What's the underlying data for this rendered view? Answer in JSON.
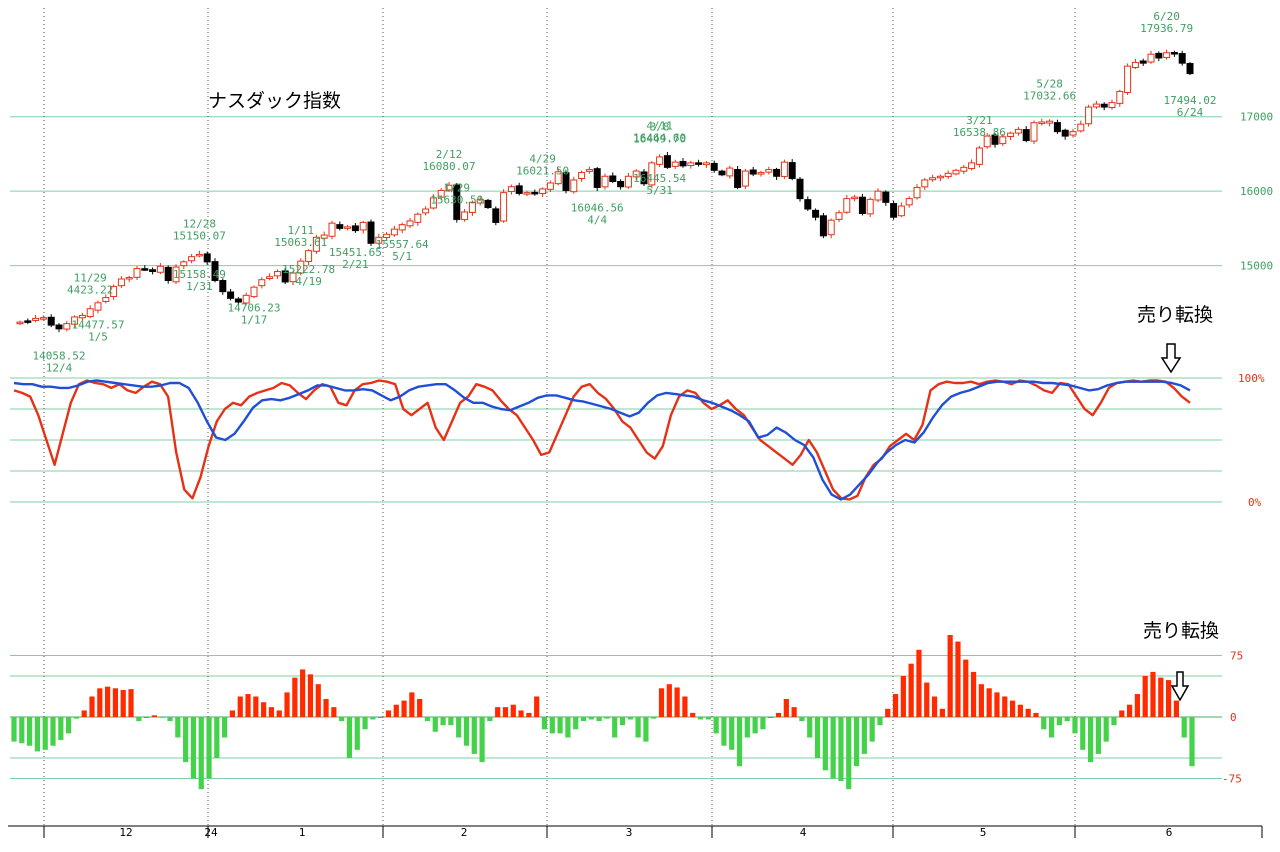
{
  "chart_data": [
    {
      "type": "candlestick",
      "title": "ナスダック指数",
      "ylim": [
        14000,
        18300
      ],
      "y_ticks": [
        15000,
        16000,
        17000
      ],
      "y_tick_labels": [
        "15000",
        "16000",
        "17000"
      ],
      "x_months": [
        "12",
        "24",
        "1",
        "2",
        "3",
        "4",
        "5",
        "6"
      ],
      "colors": {
        "up": "#e53217",
        "down": "#000000",
        "label": "#3f9f62",
        "grid": "#7fcfa6"
      },
      "closes": [
        14240,
        14250,
        14290,
        14300,
        14200,
        14150,
        14220,
        14310,
        14330,
        14420,
        14500,
        14570,
        14720,
        14820,
        14840,
        14960,
        14950,
        14920,
        14990,
        14800,
        14980,
        15050,
        15120,
        15150,
        15050,
        14800,
        14650,
        14560,
        14510,
        14600,
        14710,
        14810,
        14850,
        14920,
        14780,
        14900,
        15060,
        15200,
        15380,
        15410,
        15570,
        15500,
        15520,
        15470,
        15580,
        15300,
        15380,
        15420,
        15490,
        15550,
        15600,
        15690,
        15760,
        15910,
        16010,
        16080,
        15620,
        15720,
        15850,
        15890,
        15780,
        15580,
        15980,
        16060,
        15970,
        15980,
        15970,
        16030,
        16110,
        16260,
        16010,
        16150,
        16250,
        16290,
        16050,
        16200,
        16130,
        16060,
        16200,
        16270,
        16100,
        16380,
        16460,
        16320,
        16390,
        16340,
        16380,
        16360,
        16380,
        16280,
        16220,
        16310,
        16050,
        16270,
        16230,
        16250,
        16290,
        16200,
        16390,
        16170,
        15900,
        15760,
        15650,
        15400,
        15610,
        15710,
        15900,
        15920,
        15700,
        15890,
        16000,
        15850,
        15650,
        15800,
        15900,
        16050,
        16150,
        16180,
        16200,
        16240,
        16280,
        16320,
        16380,
        16580,
        16740,
        16630,
        16730,
        16780,
        16830,
        16680,
        16920,
        16930,
        16940,
        16800,
        16740,
        16800,
        16900,
        17130,
        17170,
        17130,
        17190,
        17340,
        17680,
        17730,
        17720,
        17840,
        17790,
        17860,
        17850,
        17720,
        17580
      ],
      "labels": [
        {
          "date": "11/29",
          "value": "4423.22",
          "pos": "above"
        },
        {
          "date": "12/4",
          "value": "14058.52",
          "pos": "below"
        },
        {
          "date": "12/28",
          "value": "15150.07",
          "pos": "above"
        },
        {
          "date": "1/5",
          "value": "14477.57",
          "pos": "below"
        },
        {
          "date": "1/11",
          "value": "15063.61",
          "pos": "above"
        },
        {
          "date": "1/17",
          "value": "14706.23",
          "pos": "below"
        },
        {
          "date": "1/29",
          "value": "15630.59",
          "pos": "above"
        },
        {
          "date": "1/31",
          "value": "15158.49",
          "pos": "below"
        },
        {
          "date": "2/12",
          "value": "16080.07",
          "pos": "above"
        },
        {
          "date": "2/21",
          "value": "15451.65",
          "pos": "below"
        },
        {
          "date": "3/8",
          "value": "16449.70",
          "pos": "above"
        },
        {
          "date": "3/21",
          "value": "16538.86",
          "pos": "above"
        },
        {
          "date": "4/4",
          "value": "16046.56",
          "pos": "below"
        },
        {
          "date": "4/11",
          "value": "16464.60",
          "pos": "above"
        },
        {
          "date": "4/19",
          "value": "15222.78",
          "pos": "below"
        },
        {
          "date": "4/29",
          "value": "16021.50",
          "pos": "above"
        },
        {
          "date": "5/1",
          "value": "15557.64",
          "pos": "below"
        },
        {
          "date": "5/28",
          "value": "17032.66",
          "pos": "above"
        },
        {
          "date": "5/31",
          "value": "16445.54",
          "pos": "below"
        },
        {
          "date": "6/20",
          "value": "17936.79",
          "pos": "above"
        },
        {
          "date": "6/24",
          "value": "17494.02",
          "pos": "below"
        }
      ]
    },
    {
      "type": "line",
      "ylim": [
        0,
        100
      ],
      "y_tick_labels": [
        "100%",
        "0%"
      ],
      "series": [
        {
          "color": "#e53217",
          "values": [
            90,
            88,
            85,
            70,
            50,
            30,
            55,
            80,
            95,
            98,
            96,
            95,
            92,
            95,
            90,
            88,
            93,
            97,
            95,
            85,
            40,
            10,
            3,
            20,
            45,
            65,
            75,
            80,
            78,
            85,
            88,
            90,
            92,
            96,
            94,
            88,
            83,
            90,
            95,
            93,
            80,
            78,
            90,
            95,
            96,
            98,
            97,
            95,
            75,
            70,
            75,
            80,
            60,
            50,
            65,
            80,
            85,
            95,
            93,
            90,
            82,
            75,
            70,
            60,
            50,
            38,
            40,
            55,
            70,
            85,
            93,
            95,
            88,
            83,
            75,
            65,
            60,
            50,
            40,
            35,
            45,
            70,
            85,
            90,
            88,
            80,
            75,
            78,
            82,
            75,
            70,
            60,
            50,
            45,
            40,
            35,
            30,
            38,
            50,
            40,
            25,
            10,
            3,
            2,
            5,
            20,
            30,
            35,
            45,
            50,
            55,
            50,
            62,
            90,
            95,
            97,
            96,
            96,
            97,
            95,
            97,
            98,
            97,
            95,
            98,
            97,
            94,
            90,
            88,
            96,
            95,
            85,
            75,
            70,
            80,
            92,
            96,
            97,
            98,
            97,
            98,
            98,
            97,
            92,
            85,
            80
          ]
        },
        {
          "color": "#1f4fd6",
          "values": [
            96,
            95,
            95,
            93,
            93,
            92,
            92,
            94,
            97,
            98,
            97,
            96,
            95,
            94,
            93,
            93,
            94,
            96,
            96,
            92,
            80,
            65,
            52,
            50,
            55,
            65,
            76,
            82,
            83,
            82,
            84,
            87,
            90,
            94,
            94,
            92,
            90,
            90,
            91,
            90,
            86,
            82,
            85,
            90,
            93,
            94,
            95,
            95,
            90,
            84,
            80,
            80,
            77,
            75,
            74,
            77,
            80,
            84,
            86,
            86,
            84,
            82,
            81,
            79,
            77,
            75,
            72,
            69,
            72,
            80,
            86,
            88,
            87,
            86,
            85,
            82,
            80,
            77,
            74,
            70,
            65,
            52,
            54,
            60,
            56,
            50,
            46,
            36,
            18,
            6,
            2,
            6,
            14,
            22,
            32,
            40,
            46,
            50,
            48,
            56,
            68,
            78,
            85,
            88,
            90,
            93,
            96,
            97,
            97,
            97,
            97,
            97,
            96,
            96,
            95,
            94,
            92,
            90,
            91,
            94,
            96,
            97,
            97,
            97,
            97,
            97,
            96,
            94,
            90
          ]
        }
      ]
    },
    {
      "type": "bar",
      "ylim": [
        -100,
        100
      ],
      "y_ticks": [
        75,
        0,
        -75
      ],
      "y_tick_labels": [
        "75",
        "0",
        "-75"
      ],
      "colors": {
        "positive": "#ff2a00",
        "negative": "#44d24a"
      },
      "values": [
        -30,
        -32,
        -35,
        -42,
        -40,
        -35,
        -28,
        -20,
        -2,
        8,
        25,
        35,
        37,
        35,
        33,
        34,
        -5,
        0,
        2,
        -1,
        -5,
        -25,
        -55,
        -75,
        -88,
        -75,
        -50,
        -25,
        8,
        25,
        28,
        25,
        18,
        12,
        8,
        30,
        48,
        58,
        52,
        40,
        22,
        12,
        -5,
        -50,
        -40,
        -15,
        -3,
        0,
        8,
        15,
        20,
        30,
        22,
        -5,
        -18,
        -10,
        -10,
        -25,
        -35,
        -45,
        -55,
        -5,
        12,
        12,
        15,
        8,
        5,
        25,
        -15,
        -20,
        -20,
        -25,
        -15,
        -5,
        -3,
        -5,
        -2,
        -25,
        -10,
        -3,
        -25,
        -30,
        -2,
        35,
        40,
        36,
        25,
        5,
        -3,
        -3,
        -20,
        -35,
        -40,
        -60,
        -25,
        -20,
        -15,
        0,
        5,
        22,
        12,
        -5,
        -25,
        -50,
        -65,
        -75,
        -78,
        -88,
        -60,
        -45,
        -30,
        -10,
        10,
        28,
        50,
        65,
        82,
        42,
        25,
        10,
        100,
        92,
        70,
        55,
        40,
        35,
        30,
        25,
        20,
        15,
        10,
        5,
        -15,
        -25,
        -10,
        -5,
        -20,
        -40,
        -55,
        -45,
        -30,
        -10,
        8,
        15,
        28,
        50,
        55,
        48,
        45,
        20,
        -25,
        -60
      ]
    }
  ],
  "annotations": {
    "arrow_label_1": "売り転換",
    "arrow_label_2": "売り転換"
  }
}
